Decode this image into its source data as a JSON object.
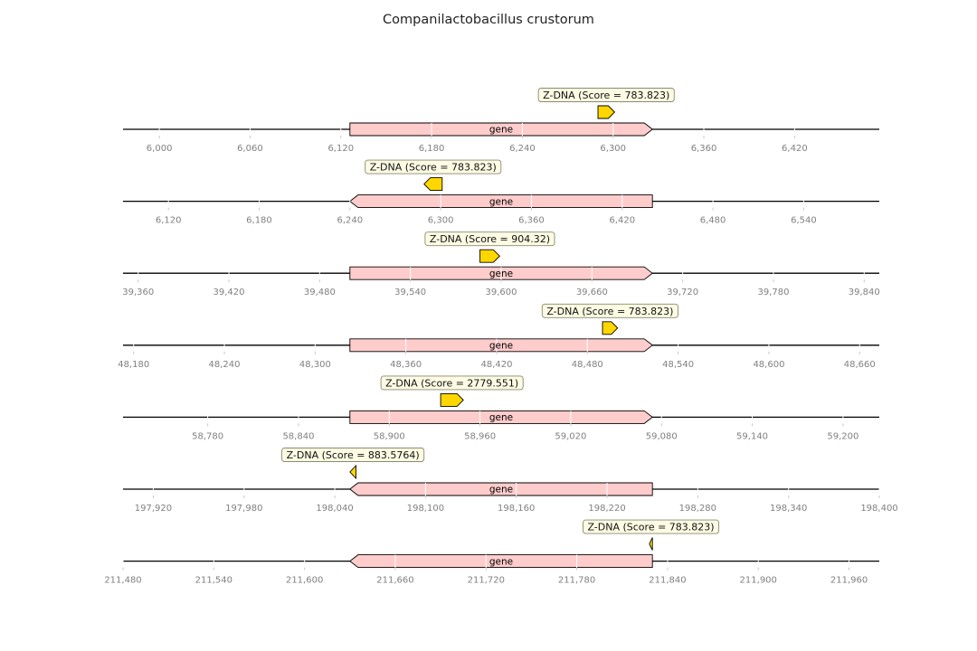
{
  "title": "Companilactobacillus crustorum",
  "colors": {
    "gene_fill": "#ffcccc",
    "feature_fill": "#ffd700",
    "annotation_fill": "#fdfbe3",
    "annotation_stroke": "#8a8a70",
    "axis_line": "#000000",
    "tick_label": "#808080"
  },
  "tracks": [
    {
      "name": "track-1",
      "range": [
        5976,
        6476
      ],
      "ticks": [
        "6,000",
        "6,060",
        "6,120",
        "6,180",
        "6,240",
        "6,300",
        "6,360",
        "6,420"
      ],
      "gene": {
        "label": "gene",
        "start": 6126,
        "end": 6326,
        "strand": 1
      },
      "feature": {
        "start": 6290,
        "end": 6301,
        "strand": 1
      },
      "annotation": "Z-DNA (Score = 783.823)"
    },
    {
      "name": "track-2",
      "range": [
        6090,
        6590
      ],
      "ticks": [
        "6,120",
        "6,180",
        "6,240",
        "6,300",
        "6,360",
        "6,420",
        "6,480",
        "6,540"
      ],
      "gene": {
        "label": "gene",
        "start": 6240,
        "end": 6440,
        "strand": -1
      },
      "feature": {
        "start": 6289,
        "end": 6301,
        "strand": -1
      },
      "annotation": "Z-DNA (Score = 783.823)"
    },
    {
      "name": "track-3",
      "range": [
        39350,
        39850
      ],
      "ticks": [
        "39,360",
        "39,420",
        "39,480",
        "39,540",
        "39,600",
        "39,660",
        "39,720",
        "39,780",
        "39,840"
      ],
      "gene": {
        "label": "gene",
        "start": 39500,
        "end": 39700,
        "strand": 1
      },
      "feature": {
        "start": 39586,
        "end": 39599,
        "strand": 1
      },
      "annotation": "Z-DNA (Score = 904.32)"
    },
    {
      "name": "track-4",
      "range": [
        48173,
        48673
      ],
      "ticks": [
        "48,180",
        "48,240",
        "48,300",
        "48,360",
        "48,420",
        "48,480",
        "48,540",
        "48,600",
        "48,660"
      ],
      "gene": {
        "label": "gene",
        "start": 48323,
        "end": 48523,
        "strand": 1
      },
      "feature": {
        "start": 48490,
        "end": 48500,
        "strand": 1
      },
      "annotation": "Z-DNA (Score = 783.823)"
    },
    {
      "name": "track-5",
      "range": [
        58724,
        59224
      ],
      "ticks": [
        "58,780",
        "58,840",
        "58,900",
        "58,960",
        "59,020",
        "59,080",
        "59,140",
        "59,200"
      ],
      "gene": {
        "label": "gene",
        "start": 58874,
        "end": 59074,
        "strand": 1
      },
      "feature": {
        "start": 58934,
        "end": 58949,
        "strand": 1
      },
      "annotation": "Z-DNA (Score = 2779.551)"
    },
    {
      "name": "track-6",
      "range": [
        197900,
        198400
      ],
      "ticks": [
        "197,920",
        "197,980",
        "198,040",
        "198,100",
        "198,160",
        "198,220",
        "198,280",
        "198,340",
        "198,400"
      ],
      "gene": {
        "label": "gene",
        "start": 198050,
        "end": 198250,
        "strand": -1
      },
      "feature": {
        "start": 198050,
        "end": 198054,
        "strand": -1
      },
      "annotation": "Z-DNA (Score = 883.5764)"
    },
    {
      "name": "track-7",
      "range": [
        211480,
        211980
      ],
      "ticks": [
        "211,480",
        "211,540",
        "211,600",
        "211,660",
        "211,720",
        "211,780",
        "211,840",
        "211,900",
        "211,960"
      ],
      "gene": {
        "label": "gene",
        "start": 211630,
        "end": 211830,
        "strand": -1
      },
      "feature": {
        "start": 211828,
        "end": 211830,
        "strand": -1
      },
      "annotation": "Z-DNA (Score = 783.823)"
    }
  ]
}
